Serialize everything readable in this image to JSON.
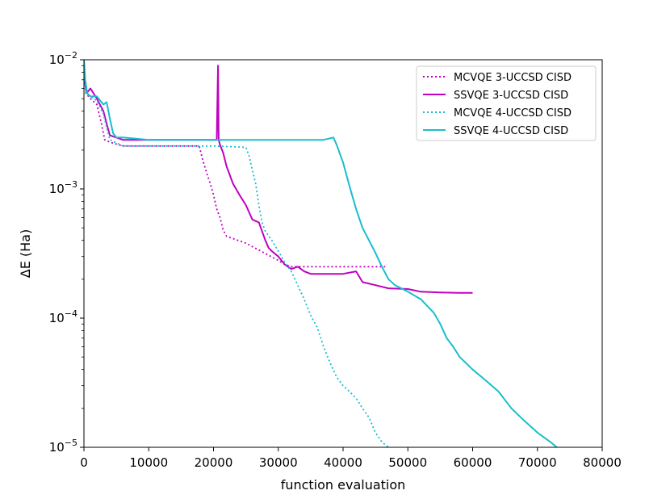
{
  "chart_data": {
    "type": "line",
    "title": "",
    "xlabel": "function evaluation",
    "ylabel": "ΔE (Ha)",
    "xlim": [
      0,
      80000
    ],
    "ylim": [
      1e-05,
      0.01
    ],
    "yscale": "log",
    "grid": false,
    "legend_position": "top-right",
    "x_ticks": [
      0,
      10000,
      20000,
      30000,
      40000,
      50000,
      60000,
      70000,
      80000
    ],
    "x_tick_labels": [
      "0",
      "10000",
      "20000",
      "30000",
      "40000",
      "50000",
      "60000",
      "70000",
      "80000"
    ],
    "y_ticks": [
      1e-05,
      0.0001,
      0.001,
      0.01
    ],
    "y_tick_labels": [
      {
        "base": "10",
        "exp": "−5"
      },
      {
        "base": "10",
        "exp": "−4"
      },
      {
        "base": "10",
        "exp": "−3"
      },
      {
        "base": "10",
        "exp": "−2"
      }
    ],
    "series": [
      {
        "name": "MCVQE 3-UCCSD CISD",
        "color": "#c000c0",
        "style": "dotted",
        "x": [
          0,
          300,
          1000,
          2000,
          2700,
          3200,
          4000,
          6000,
          10000,
          15000,
          17800,
          18300,
          19000,
          19500,
          20000,
          20500,
          21000,
          21500,
          22000,
          25000,
          30000,
          31000,
          32000,
          40000,
          46500
        ],
        "y": [
          0.0075,
          0.0055,
          0.005,
          0.0045,
          0.0032,
          0.0024,
          0.0023,
          0.00215,
          0.00215,
          0.00215,
          0.00215,
          0.0017,
          0.0013,
          0.0011,
          0.0009,
          0.0007,
          0.0006,
          0.00048,
          0.00043,
          0.00038,
          0.00028,
          0.00026,
          0.00025,
          0.00025,
          0.00025
        ]
      },
      {
        "name": "SSVQE 3-UCCSD CISD",
        "color": "#c000c0",
        "style": "solid",
        "x": [
          0,
          400,
          1000,
          2000,
          3000,
          3500,
          4000,
          5000,
          6000,
          8000,
          15000,
          20500,
          20700,
          20800,
          20900,
          21000,
          21500,
          22000,
          23000,
          24000,
          25000,
          26000,
          27000,
          28000,
          28500,
          29000,
          30000,
          31000,
          32000,
          33000,
          34000,
          35000,
          36000,
          38000,
          40000,
          42000,
          43000,
          45000,
          47000,
          50000,
          52000,
          55000,
          58000,
          60000
        ],
        "y": [
          0.0075,
          0.0055,
          0.006,
          0.005,
          0.004,
          0.0032,
          0.0026,
          0.0025,
          0.0024,
          0.0024,
          0.0024,
          0.0024,
          0.009,
          0.0024,
          0.0023,
          0.0022,
          0.0019,
          0.0015,
          0.0011,
          0.0009,
          0.00075,
          0.00058,
          0.00055,
          0.0004,
          0.00035,
          0.00033,
          0.0003,
          0.00026,
          0.00024,
          0.00025,
          0.00023,
          0.00022,
          0.00022,
          0.00022,
          0.00022,
          0.00023,
          0.00019,
          0.00018,
          0.00017,
          0.000168,
          0.00016,
          0.000158,
          0.000157,
          0.000157
        ]
      },
      {
        "name": "MCVQE 4-UCCSD CISD",
        "color": "#17becf",
        "style": "dotted",
        "x": [
          0,
          300,
          1000,
          2000,
          3000,
          3500,
          4000,
          6000,
          10000,
          20000,
          25000,
          25500,
          26000,
          26500,
          27000,
          27500,
          28000,
          29000,
          30000,
          31000,
          32000,
          33000,
          34000,
          35000,
          36000,
          37000,
          38000,
          39000,
          40000,
          41000,
          42000,
          43000,
          44000,
          45000,
          46000,
          47000
        ],
        "y": [
          0.0075,
          0.0055,
          0.0052,
          0.0048,
          0.0038,
          0.003,
          0.0024,
          0.00215,
          0.00215,
          0.00215,
          0.0021,
          0.0018,
          0.0014,
          0.0011,
          0.00075,
          0.00055,
          0.00047,
          0.0004,
          0.00033,
          0.00027,
          0.00023,
          0.00018,
          0.00014,
          0.000105,
          8.5e-05,
          6e-05,
          4.5e-05,
          3.5e-05,
          3e-05,
          2.7e-05,
          2.4e-05,
          2e-05,
          1.7e-05,
          1.3e-05,
          1.1e-05,
          1e-05
        ]
      },
      {
        "name": "SSVQE 4-UCCSD CISD",
        "color": "#17becf",
        "style": "solid",
        "x": [
          0,
          200,
          500,
          1000,
          2000,
          3000,
          3500,
          4000,
          4500,
          5000,
          6000,
          10000,
          20000,
          30000,
          37000,
          38500,
          39000,
          40000,
          41000,
          42000,
          43000,
          44000,
          45000,
          46000,
          47000,
          48000,
          49000,
          50000,
          52000,
          54000,
          55000,
          56000,
          57000,
          58000,
          60000,
          62000,
          64000,
          66000,
          68000,
          70000,
          72000,
          73000
        ],
        "y": [
          0.01,
          0.007,
          0.0055,
          0.0052,
          0.0052,
          0.0045,
          0.0047,
          0.0035,
          0.0027,
          0.0025,
          0.0025,
          0.0024,
          0.0024,
          0.0024,
          0.0024,
          0.0025,
          0.0022,
          0.0016,
          0.00105,
          0.0007,
          0.0005,
          0.0004,
          0.00032,
          0.00025,
          0.0002,
          0.00018,
          0.00017,
          0.00016,
          0.00014,
          0.00011,
          9e-05,
          7e-05,
          6e-05,
          5e-05,
          4e-05,
          3.3e-05,
          2.7e-05,
          2e-05,
          1.6e-05,
          1.3e-05,
          1.1e-05,
          1e-05
        ]
      }
    ]
  }
}
